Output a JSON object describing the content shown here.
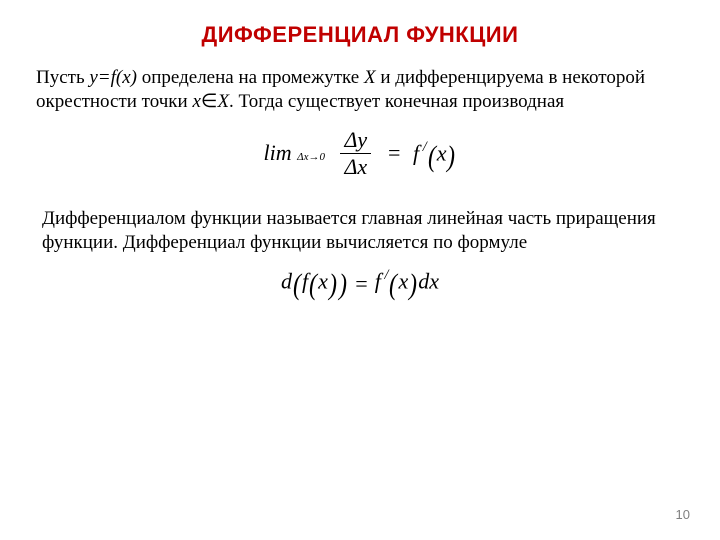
{
  "colors": {
    "title": "#c00000",
    "body": "#000000",
    "pagenum": "#7f7f7f",
    "background": "#ffffff"
  },
  "fonts": {
    "title_family": "Arial",
    "title_size_pt": 16,
    "title_weight": "700",
    "body_family": "Times New Roman",
    "body_size_pt": 14,
    "formula_size_pt": 16,
    "pagenum_size_pt": 10
  },
  "title": "ДИФФЕРЕНЦИАЛ ФУНКЦИИ",
  "para1": {
    "p1": "Пусть ",
    "p2": "y=f(x)",
    "p3": " определена на промежутке ",
    "p4": "X",
    "p5": " и дифференцируема в некоторой окрестности точки ",
    "p6": "x",
    "p7": "∈",
    "p8": "X",
    "p9": ". Тогда существует конечная производная"
  },
  "formula1": {
    "lim": "lim",
    "sub_l": "Δx",
    "sub_arrow": "→",
    "sub_r": "0",
    "num": "Δy",
    "den": "Δx",
    "eq": "=",
    "rhs_f": "f",
    "rhs_prime": " /",
    "rhs_lp": "(",
    "rhs_x": "x",
    "rhs_rp": ")"
  },
  "para2": "Дифференциалом функции называется главная линейная часть приращения функции. Дифференциал функции вычисляется по формуле",
  "formula2": {
    "d": "d",
    "lp1": "(",
    "f": "f",
    "lp2": "(",
    "x1": "x",
    "rp2": ")",
    "rp1": ")",
    "eq": "=",
    "f2": "f",
    "prime": " /",
    "lp3": "(",
    "x2": "x",
    "rp3": ")",
    "dx": "dx"
  },
  "pagenum": "10"
}
